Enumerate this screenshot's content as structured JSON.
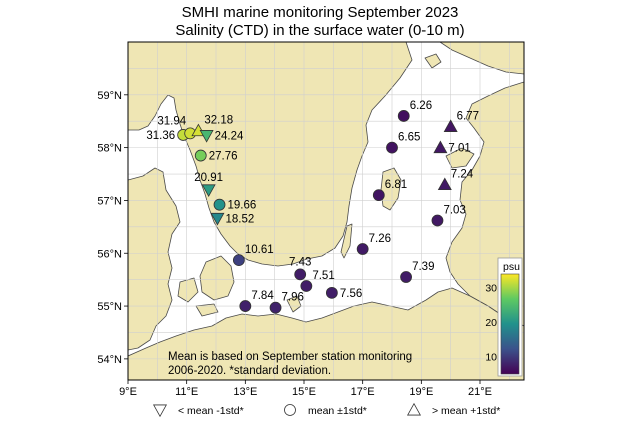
{
  "title": "SMHI marine monitoring September 2023",
  "subtitle": "Salinity (CTD) in the surface water (0-10 m)",
  "axes": {
    "x_ticks": [
      "9°E",
      "11°E",
      "13°E",
      "15°E",
      "17°E",
      "19°E",
      "21°E"
    ],
    "x_values": [
      9,
      11,
      13,
      15,
      17,
      19,
      21
    ],
    "y_ticks": [
      "54°N",
      "55°N",
      "56°N",
      "57°N",
      "58°N",
      "59°N"
    ],
    "y_values": [
      54,
      55,
      56,
      57,
      58,
      59
    ],
    "lon_range": [
      9,
      22.5
    ],
    "lat_range": [
      53.6,
      60.0
    ]
  },
  "colors": {
    "sea": "#ffffff",
    "land": "#efe6b4",
    "coast": "#4a4a4a",
    "grid": "#cfcfcf",
    "colormap": [
      "#440154",
      "#3b528b",
      "#21918c",
      "#5ec962",
      "#fde725"
    ]
  },
  "note": {
    "line1": "Mean is based on September station monitoring",
    "line2": "2006-2020. *standard deviation."
  },
  "colorbar": {
    "unit": "psu",
    "min": 5,
    "max": 34,
    "ticks": [
      "10",
      "20",
      "30"
    ],
    "tick_values": [
      10,
      20,
      30
    ]
  },
  "legend": [
    {
      "symbol": "triangle-down",
      "label": "< mean -1std*"
    },
    {
      "symbol": "circle",
      "label": "mean ±1std*"
    },
    {
      "symbol": "triangle-up",
      "label": "> mean +1std*"
    }
  ],
  "stations": [
    {
      "lon": 10.88,
      "lat": 58.24,
      "value": 31.36,
      "label": "31.36",
      "marker": "circle",
      "label_side": "left"
    },
    {
      "lon": 11.12,
      "lat": 58.27,
      "value": 31.94,
      "label": "31.94",
      "marker": "circle",
      "label_side": "above-left"
    },
    {
      "lon": 11.4,
      "lat": 58.32,
      "value": 32.18,
      "label": "32.18",
      "marker": "triangle-up",
      "label_side": "above-right"
    },
    {
      "lon": 11.68,
      "lat": 58.23,
      "value": 24.24,
      "label": "24.24",
      "marker": "triangle-down",
      "label_side": "right"
    },
    {
      "lon": 11.48,
      "lat": 57.85,
      "value": 27.76,
      "label": "27.76",
      "marker": "circle",
      "label_side": "right"
    },
    {
      "lon": 11.75,
      "lat": 57.2,
      "value": 20.91,
      "label": "20.91",
      "marker": "triangle-down",
      "label_side": "above"
    },
    {
      "lon": 12.12,
      "lat": 56.92,
      "value": 19.66,
      "label": "19.66",
      "marker": "circle",
      "label_side": "right"
    },
    {
      "lon": 12.05,
      "lat": 56.66,
      "value": 18.52,
      "label": "18.52",
      "marker": "triangle-down",
      "label_side": "right"
    },
    {
      "lon": 12.78,
      "lat": 55.87,
      "value": 10.61,
      "label": "10.61",
      "marker": "circle",
      "label_side": "above-right"
    },
    {
      "lon": 13.0,
      "lat": 55.0,
      "value": 7.84,
      "label": "7.84",
      "marker": "circle",
      "label_side": "above-right"
    },
    {
      "lon": 14.03,
      "lat": 54.97,
      "value": 7.96,
      "label": "7.96",
      "marker": "circle",
      "label_side": "above-right"
    },
    {
      "lon": 14.87,
      "lat": 55.6,
      "value": 7.43,
      "label": "7.43",
      "marker": "circle",
      "label_side": "above"
    },
    {
      "lon": 15.08,
      "lat": 55.38,
      "value": 7.51,
      "label": "7.51",
      "marker": "circle",
      "label_side": "above-right"
    },
    {
      "lon": 15.95,
      "lat": 55.25,
      "value": 7.56,
      "label": "7.56",
      "marker": "circle",
      "label_side": "right"
    },
    {
      "lon": 17.0,
      "lat": 56.08,
      "value": 7.26,
      "label": "7.26",
      "marker": "circle",
      "label_side": "above-right"
    },
    {
      "lon": 18.48,
      "lat": 55.55,
      "value": 7.39,
      "label": "7.39",
      "marker": "circle",
      "label_side": "above-right"
    },
    {
      "lon": 17.55,
      "lat": 57.1,
      "value": 6.81,
      "label": "6.81",
      "marker": "circle",
      "label_side": "above-right"
    },
    {
      "lon": 18.0,
      "lat": 58.0,
      "value": 6.65,
      "label": "6.65",
      "marker": "circle",
      "label_side": "above-right"
    },
    {
      "lon": 18.4,
      "lat": 58.6,
      "value": 6.26,
      "label": "6.26",
      "marker": "circle",
      "label_side": "above-right"
    },
    {
      "lon": 20.0,
      "lat": 58.4,
      "value": 6.77,
      "label": "6.77",
      "marker": "triangle-up",
      "label_side": "above-right"
    },
    {
      "lon": 19.65,
      "lat": 58.0,
      "value": 7.01,
      "label": "7.01",
      "marker": "triangle-up",
      "label_side": "right"
    },
    {
      "lon": 19.8,
      "lat": 57.3,
      "value": 7.24,
      "label": "7.24",
      "marker": "triangle-up",
      "label_side": "above-right"
    },
    {
      "lon": 19.55,
      "lat": 56.62,
      "value": 7.03,
      "label": "7.03",
      "marker": "circle",
      "label_side": "above-right"
    }
  ]
}
